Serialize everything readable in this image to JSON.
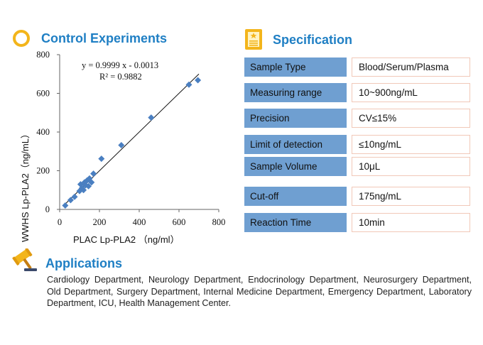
{
  "control": {
    "title": "Control Experiments"
  },
  "spec": {
    "title": "Specification",
    "rows": [
      {
        "label": "Sample  Type",
        "value": "Blood/Serum/Plasma"
      },
      {
        "label": "Measuring range",
        "value": "10~900ng/mL"
      },
      {
        "label": "Precision",
        "value": "CV≤15%"
      },
      {
        "label": "Limit of detection",
        "value": "≤10ng/mL"
      },
      {
        "label": "Sample  Volume",
        "value": "10μL"
      },
      {
        "label": "Cut-off",
        "value": "175ng/mL"
      },
      {
        "label": "Reaction Time",
        "value": "10min"
      }
    ]
  },
  "applications": {
    "title": "Applications",
    "text": "Cardiology Department, Neurology Department, Endocrinology Department, Neurosurgery Department, Old Department, Surgery Department, Internal Medicine Department, Emergency Department, Laboratory Department, ICU, Health Management Center."
  },
  "colors": {
    "accent_blue": "#1f7fc4",
    "label_bg": "#6f9fd1",
    "value_border": "#f1c8b8",
    "point": "#4a7fc1",
    "icon_yellow": "#f3b51b"
  },
  "chart_data": {
    "type": "scatter",
    "xlabel": "PLAC Lp-PLA2 （ng/ml）",
    "ylabel": "WWHS Lp-PLA2（ng/mL）",
    "xlim": [
      0,
      800
    ],
    "ylim": [
      0,
      800
    ],
    "xticks": [
      "0",
      "200",
      "400",
      "600",
      "800"
    ],
    "yticks": [
      "0",
      "200",
      "400",
      "600",
      "800"
    ],
    "equation": "y = 0.9999 x - 0.0013",
    "r2": "R² = 0.9882",
    "trendline": {
      "slope": 0.9999,
      "intercept": -0.0013,
      "x_range": [
        28,
        700
      ]
    },
    "points": [
      [
        28,
        20
      ],
      [
        55,
        48
      ],
      [
        75,
        65
      ],
      [
        100,
        95
      ],
      [
        105,
        130
      ],
      [
        112,
        110
      ],
      [
        120,
        100
      ],
      [
        125,
        140
      ],
      [
        130,
        125
      ],
      [
        138,
        150
      ],
      [
        145,
        120
      ],
      [
        150,
        160
      ],
      [
        160,
        140
      ],
      [
        170,
        185
      ],
      [
        210,
        262
      ],
      [
        310,
        332
      ],
      [
        460,
        475
      ],
      [
        650,
        645
      ],
      [
        695,
        668
      ]
    ]
  }
}
